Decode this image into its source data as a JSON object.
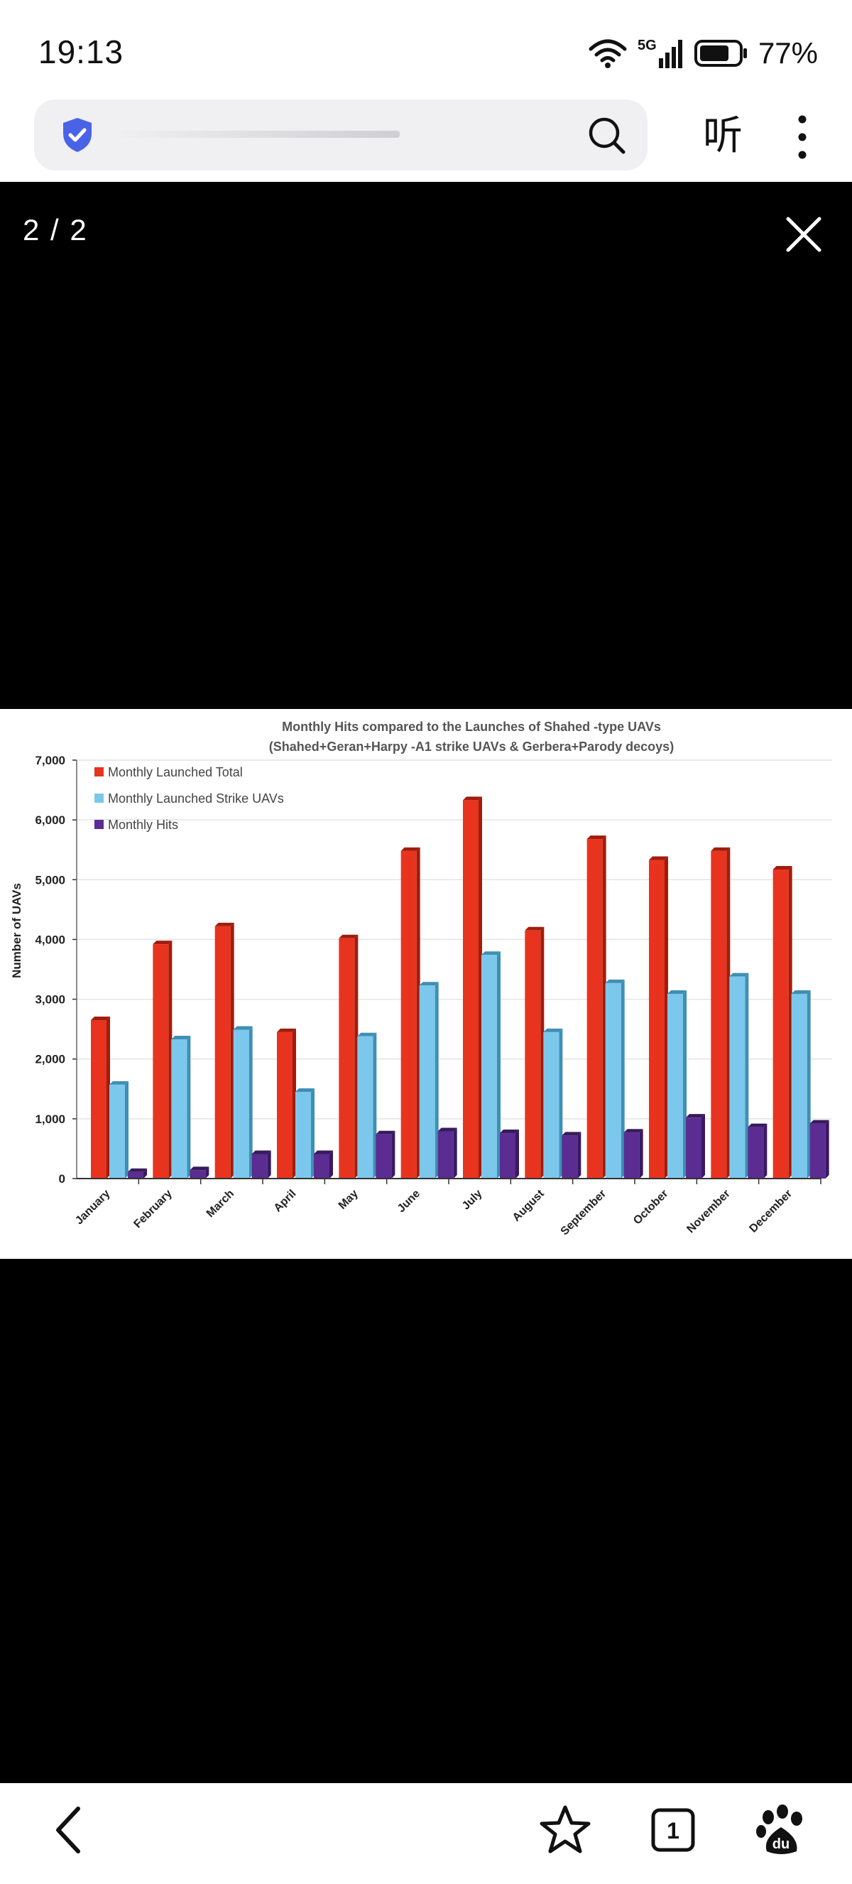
{
  "status_bar": {
    "time": "19:13",
    "network": "5G",
    "battery_percent": "77%",
    "battery_level": 0.77
  },
  "browser": {
    "listen_label": "听"
  },
  "viewer": {
    "counter": "2 / 2"
  },
  "chart_data": {
    "type": "bar",
    "title": "Monthly Hits compared to the Launches of Shahed  -type UAVs",
    "subtitle": "(Shahed+Geran+Harpy -A1 strike UAVs & Gerbera+Parody decoys)",
    "ylabel": "Number of UAVs",
    "xlabel": "",
    "ylim": [
      0,
      7000
    ],
    "yticks": [
      0,
      1000,
      2000,
      3000,
      4000,
      5000,
      6000,
      7000
    ],
    "ytick_labels": [
      "0",
      "1,000",
      "2,000",
      "3,000",
      "4,000",
      "5,000",
      "6,000",
      "7,000"
    ],
    "legend_position": "top-left",
    "grid": true,
    "categories": [
      "January",
      "February",
      "March",
      "April",
      "May",
      "June",
      "July",
      "August",
      "September",
      "October",
      "November",
      "December"
    ],
    "series": [
      {
        "name": "Monthly Launched Total",
        "color": "#e8341f",
        "values": [
          2650,
          3920,
          4220,
          2450,
          4020,
          5480,
          6330,
          4150,
          5680,
          5330,
          5480,
          5170
        ]
      },
      {
        "name": "Monthly Launched Strike UAVs",
        "color": "#7cc8ec",
        "values": [
          1570,
          2330,
          2490,
          1450,
          2380,
          3230,
          3740,
          2450,
          3270,
          3090,
          3380,
          3090
        ]
      },
      {
        "name": "Monthly Hits",
        "color": "#5b2c91",
        "values": [
          110,
          140,
          410,
          410,
          740,
          790,
          760,
          720,
          770,
          1020,
          860,
          920
        ]
      }
    ]
  },
  "icons": {
    "back": "chevron-left-icon",
    "favorite": "star-icon",
    "tabs": "tabs-icon",
    "tabs_count": "1",
    "baidu": "baidu-paw-icon"
  }
}
